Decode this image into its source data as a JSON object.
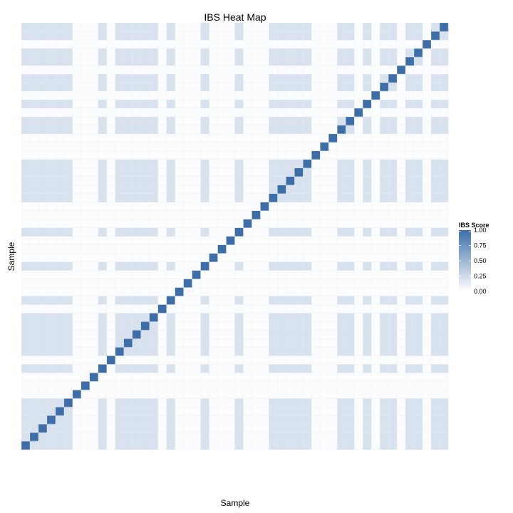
{
  "chart_data": {
    "type": "heatmap",
    "title": "IBS Heat Map",
    "xlabel": "Sample",
    "ylabel": "Sample",
    "n_samples": 50,
    "value_range": [
      0,
      1
    ],
    "grid": true,
    "legend": {
      "title": "IBS Score",
      "placement": "right",
      "ticks": [
        1.0,
        0.75,
        0.5,
        0.25,
        0.0
      ],
      "tick_labels": [
        "1.00",
        "0.75",
        "0.50",
        "0.25",
        "0.00"
      ]
    },
    "colors": {
      "high": "#3d6ea8",
      "low": "#ffffff",
      "panel": "#ffffff",
      "grid": "#ececec"
    },
    "diagonal_value": 1.0,
    "related_groups": [
      [
        0,
        1,
        2,
        3,
        4,
        5,
        9,
        11,
        12,
        13,
        14,
        15,
        17,
        21,
        25,
        29,
        30,
        31,
        32,
        33,
        37,
        38,
        40,
        42,
        43,
        45,
        46,
        48,
        49
      ],
      [
        6,
        7,
        8,
        10,
        16,
        18,
        19,
        20,
        22,
        23,
        24,
        26,
        27,
        28,
        34,
        35,
        36,
        39,
        41,
        44,
        47
      ]
    ],
    "related_value": 0.2,
    "background_value": 0.02
  }
}
